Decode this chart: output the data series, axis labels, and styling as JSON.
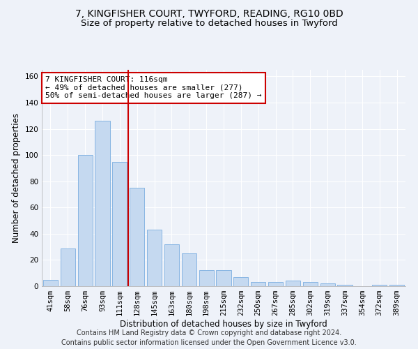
{
  "title_line1": "7, KINGFISHER COURT, TWYFORD, READING, RG10 0BD",
  "title_line2": "Size of property relative to detached houses in Twyford",
  "xlabel": "Distribution of detached houses by size in Twyford",
  "ylabel": "Number of detached properties",
  "categories": [
    "41sqm",
    "58sqm",
    "76sqm",
    "93sqm",
    "111sqm",
    "128sqm",
    "145sqm",
    "163sqm",
    "180sqm",
    "198sqm",
    "215sqm",
    "232sqm",
    "250sqm",
    "267sqm",
    "285sqm",
    "302sqm",
    "319sqm",
    "337sqm",
    "354sqm",
    "372sqm",
    "389sqm"
  ],
  "values": [
    5,
    29,
    100,
    126,
    95,
    75,
    43,
    32,
    25,
    12,
    12,
    7,
    3,
    3,
    4,
    3,
    2,
    1,
    0,
    1,
    1
  ],
  "bar_color": "#c5d9f0",
  "bar_edge_color": "#7aade0",
  "vline_x": 4.5,
  "vline_color": "#cc0000",
  "annotation_text": "7 KINGFISHER COURT: 116sqm\n← 49% of detached houses are smaller (277)\n50% of semi-detached houses are larger (287) →",
  "annotation_box_color": "#ffffff",
  "annotation_box_edge_color": "#cc0000",
  "ylim": [
    0,
    165
  ],
  "yticks": [
    0,
    20,
    40,
    60,
    80,
    100,
    120,
    140,
    160
  ],
  "footer_line1": "Contains HM Land Registry data © Crown copyright and database right 2024.",
  "footer_line2": "Contains public sector information licensed under the Open Government Licence v3.0.",
  "bg_color": "#eef2f9",
  "plot_bg_color": "#eef2f9",
  "grid_color": "#ffffff",
  "title_fontsize": 10,
  "subtitle_fontsize": 9.5,
  "axis_label_fontsize": 8.5,
  "tick_fontsize": 7.5,
  "annotation_fontsize": 8,
  "footer_fontsize": 7
}
